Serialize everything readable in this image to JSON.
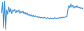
{
  "chart_data": {
    "type": "line",
    "color": "#3a8fd6",
    "tick_labels": false,
    "grid": false,
    "ylim": [
      0,
      100
    ],
    "values": [
      60,
      95,
      10,
      100,
      5,
      70,
      55,
      80,
      62,
      75,
      58,
      70,
      66,
      72,
      60,
      68,
      63,
      70,
      58,
      65,
      60,
      66,
      57,
      62,
      55,
      60,
      52,
      56,
      50,
      54,
      48,
      52,
      47,
      50,
      46,
      48,
      44,
      47,
      43,
      45,
      44,
      42,
      45,
      43,
      41,
      44,
      42,
      40,
      43,
      41,
      42,
      40,
      44,
      42,
      41,
      43,
      42,
      44,
      43,
      45,
      44,
      46,
      45,
      47,
      46,
      70,
      85,
      78,
      90,
      80,
      86,
      76,
      82,
      78,
      84,
      77,
      80,
      75,
      78,
      74,
      76
    ]
  }
}
